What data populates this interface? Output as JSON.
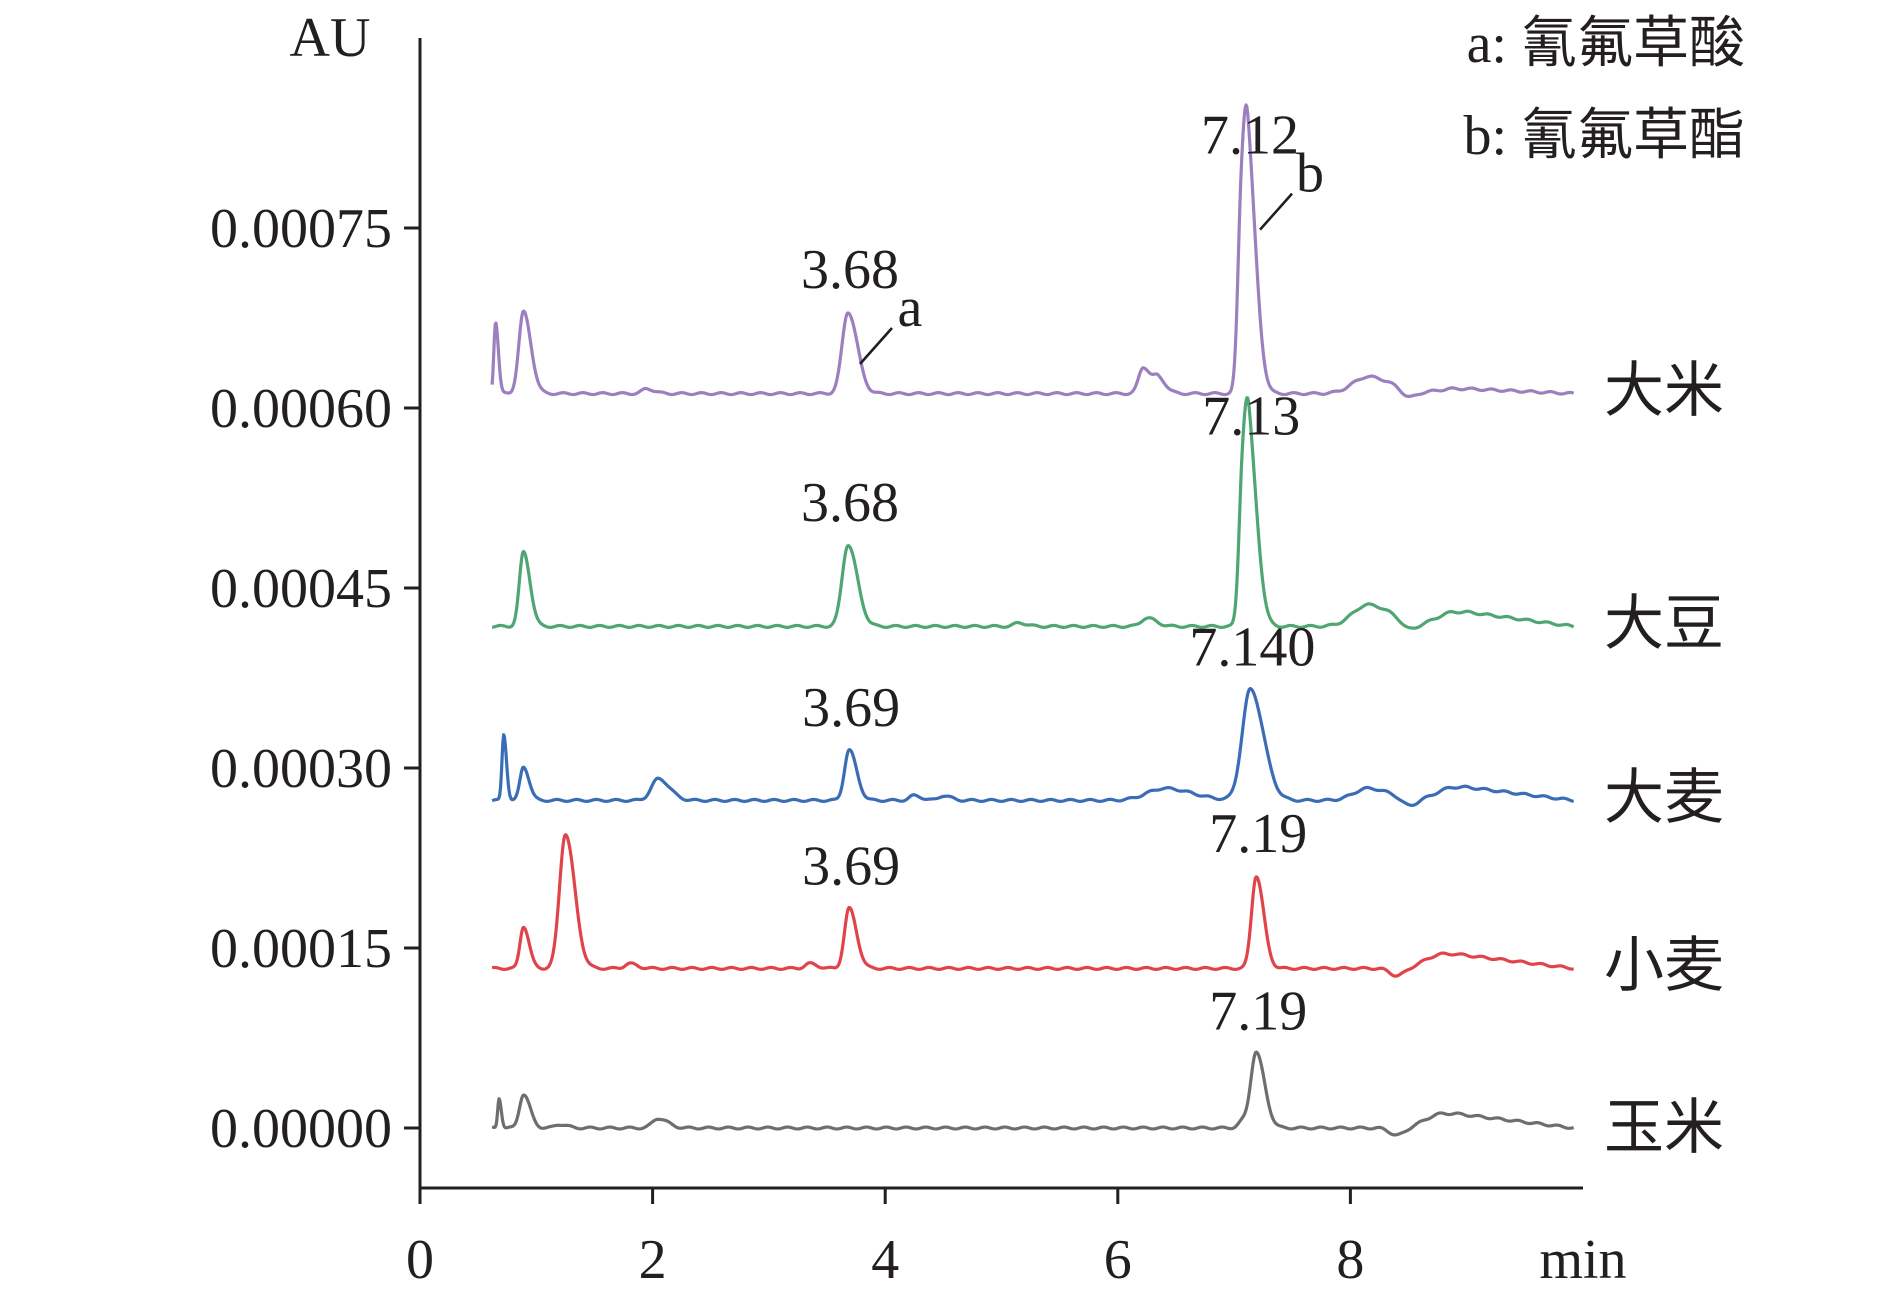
{
  "chart_data": {
    "type": "line",
    "y_unit": "AU",
    "x_unit": "min",
    "xlim": [
      0,
      10
    ],
    "ylim": [
      -3e-05,
      0.00093
    ],
    "x_ticks": [
      "0",
      "2",
      "4",
      "6",
      "8"
    ],
    "x_tick_values": [
      0,
      2,
      4,
      6,
      8
    ],
    "y_ticks": [
      "0.00000",
      "0.00015",
      "0.00030",
      "0.00045",
      "0.00060",
      "0.00075"
    ],
    "y_tick_values": [
      0.0,
      0.00015,
      0.0003,
      0.00045,
      0.0006,
      0.00075
    ],
    "grid": false,
    "legend": {
      "position": "top-right",
      "entries": [
        "a: 氰氟草酸",
        "b: 氰氟草酯"
      ]
    },
    "series": [
      {
        "name": "大米",
        "color": "#9b7fbf",
        "baseline": 0.000612,
        "peaks": [
          {
            "x": 0.65,
            "h": 6e-05,
            "w": 0.015
          },
          {
            "x": 0.89,
            "h": 6.8e-05,
            "w": 0.04
          },
          {
            "x": 1.95,
            "h": 4e-06,
            "w": 0.04
          },
          {
            "x": 3.68,
            "h": 6.8e-05,
            "w": 0.05
          },
          {
            "x": 6.22,
            "h": 2.2e-05,
            "w": 0.04
          },
          {
            "x": 6.35,
            "h": 1.2e-05,
            "w": 0.04
          },
          {
            "x": 7.06,
            "h": 0.00011,
            "w": 0.03
          },
          {
            "x": 7.12,
            "h": 0.00018,
            "w": 0.045
          },
          {
            "x": 8.15,
            "h": 1.4e-05,
            "w": 0.13
          }
        ],
        "step_from": 8.7,
        "step_height": 4e-06,
        "end_value": 0.000614,
        "labels": [
          {
            "x": 3.68,
            "text": "3.68",
            "letter": "a"
          },
          {
            "x": 7.12,
            "text": "7.12",
            "letter": "b"
          }
        ]
      },
      {
        "name": "大豆",
        "color": "#4fa673",
        "baseline": 0.000418,
        "peaks": [
          {
            "x": 0.89,
            "h": 6.2e-05,
            "w": 0.035
          },
          {
            "x": 3.68,
            "h": 6.8e-05,
            "w": 0.05
          },
          {
            "x": 5.15,
            "h": 3e-06,
            "w": 0.04
          },
          {
            "x": 6.25,
            "h": 7e-06,
            "w": 0.05
          },
          {
            "x": 7.07,
            "h": 9e-05,
            "w": 0.03
          },
          {
            "x": 7.13,
            "h": 0.00014,
            "w": 0.045
          },
          {
            "x": 8.15,
            "h": 1.8e-05,
            "w": 0.13
          }
        ],
        "step_from": 8.7,
        "step_height": 1.2e-05,
        "end_value": 0.00042,
        "labels": [
          {
            "x": 3.68,
            "text": "3.68",
            "letter": ""
          },
          {
            "x": 7.13,
            "text": "7.13",
            "letter": ""
          }
        ]
      },
      {
        "name": "大麦",
        "color": "#3a6db5",
        "baseline": 0.000273,
        "peaks": [
          {
            "x": 0.72,
            "h": 5.5e-05,
            "w": 0.015
          },
          {
            "x": 0.89,
            "h": 2.8e-05,
            "w": 0.03
          },
          {
            "x": 2.05,
            "h": 1.8e-05,
            "w": 0.06
          },
          {
            "x": 3.69,
            "h": 4.2e-05,
            "w": 0.04
          },
          {
            "x": 4.25,
            "h": 4e-06,
            "w": 0.04
          },
          {
            "x": 4.5,
            "h": 4e-06,
            "w": 0.04
          },
          {
            "x": 6.4,
            "h": 1e-05,
            "w": 0.15
          },
          {
            "x": 7.14,
            "h": 9.25e-05,
            "w": 0.07
          },
          {
            "x": 8.15,
            "h": 1e-05,
            "w": 0.12
          }
        ],
        "step_from": 8.7,
        "step_height": 1.1e-05,
        "end_value": 0.000275,
        "labels": [
          {
            "x": 3.69,
            "text": "3.69",
            "letter": ""
          },
          {
            "x": 7.14,
            "text": "7.140",
            "letter": ""
          }
        ]
      },
      {
        "name": "小麦",
        "color": "#e0444a",
        "baseline": 0.000133,
        "peaks": [
          {
            "x": 0.89,
            "h": 3.5e-05,
            "w": 0.03
          },
          {
            "x": 1.25,
            "h": 0.000112,
            "w": 0.05
          },
          {
            "x": 1.8,
            "h": 4e-06,
            "w": 0.04
          },
          {
            "x": 3.35,
            "h": 4e-06,
            "w": 0.04
          },
          {
            "x": 3.69,
            "h": 5e-05,
            "w": 0.04
          },
          {
            "x": 7.19,
            "h": 7.7e-05,
            "w": 0.04
          }
        ],
        "step_from": 8.6,
        "step_height": 1.2e-05,
        "end_value": 0.000135,
        "labels": [
          {
            "x": 3.69,
            "text": "3.69",
            "letter": ""
          },
          {
            "x": 7.19,
            "text": "7.19",
            "letter": ""
          }
        ]
      },
      {
        "name": "玉米",
        "color": "#6e6e6e",
        "baseline": 0.0,
        "peaks": [
          {
            "x": 0.68,
            "h": 2.5e-05,
            "w": 0.012
          },
          {
            "x": 0.89,
            "h": 2.8e-05,
            "w": 0.035
          },
          {
            "x": 1.2,
            "h": 3e-06,
            "w": 0.04
          },
          {
            "x": 2.05,
            "h": 8e-06,
            "w": 0.05
          },
          {
            "x": 7.19,
            "h": 6.2e-05,
            "w": 0.045
          },
          {
            "x": 7.08,
            "h": 6e-06,
            "w": 0.04
          }
        ],
        "step_from": 8.6,
        "step_height": 1.2e-05,
        "end_value": 0.0,
        "labels": [
          {
            "x": 7.19,
            "text": "7.19",
            "letter": ""
          }
        ]
      }
    ]
  }
}
